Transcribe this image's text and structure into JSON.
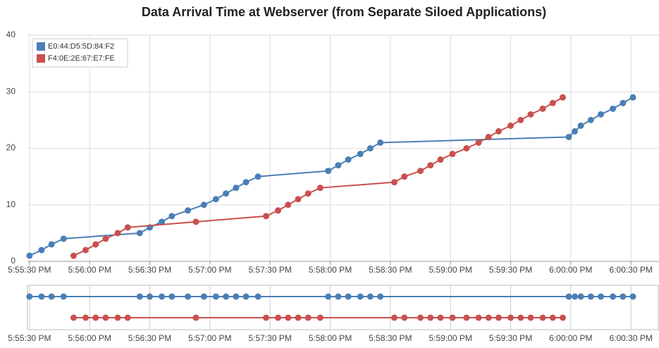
{
  "chart_data": {
    "type": "line",
    "title": "Data Arrival Time at Webserver (from Separate Siloed Applications)",
    "legend": "top-left",
    "grid": true,
    "xlim": [
      "5:55:29 PM",
      "6:00:44 PM"
    ],
    "xticks": [
      "5:55:30 PM",
      "5:56:00 PM",
      "5:56:30 PM",
      "5:57:00 PM",
      "5:57:30 PM",
      "5:58:00 PM",
      "5:58:30 PM",
      "5:59:00 PM",
      "5:59:30 PM",
      "6:00:00 PM",
      "6:00:30 PM"
    ],
    "ylim": [
      0,
      40
    ],
    "yticks": [
      0,
      10,
      20,
      30,
      40
    ],
    "series": [
      {
        "name": "E0:44:D5:5D:84:F2",
        "color": "#4a7fb5",
        "x": [
          "5:55:30 PM",
          "5:55:36 PM",
          "5:55:41 PM",
          "5:55:47 PM",
          "5:56:25 PM",
          "5:56:30 PM",
          "5:56:36 PM",
          "5:56:41 PM",
          "5:56:49 PM",
          "5:56:57 PM",
          "5:57:03 PM",
          "5:57:08 PM",
          "5:57:13 PM",
          "5:57:18 PM",
          "5:57:24 PM",
          "5:57:59 PM",
          "5:58:04 PM",
          "5:58:09 PM",
          "5:58:15 PM",
          "5:58:20 PM",
          "5:58:25 PM",
          "5:59:59 PM",
          "6:00:02 PM",
          "6:00:05 PM",
          "6:00:10 PM",
          "6:00:15 PM",
          "6:00:21 PM",
          "6:00:26 PM",
          "6:00:31 PM"
        ],
        "values": [
          1,
          2,
          3,
          4,
          5,
          6,
          7,
          8,
          9,
          10,
          11,
          12,
          13,
          14,
          15,
          16,
          17,
          18,
          19,
          20,
          21,
          22,
          23,
          24,
          25,
          26,
          27,
          28,
          29
        ]
      },
      {
        "name": "F4:0E:2E:67:E7:FE",
        "color": "#c9504f",
        "x": [
          "5:55:52 PM",
          "5:55:58 PM",
          "5:56:03 PM",
          "5:56:08 PM",
          "5:56:14 PM",
          "5:56:19 PM",
          "5:56:53 PM",
          "5:57:28 PM",
          "5:57:34 PM",
          "5:57:39 PM",
          "5:57:44 PM",
          "5:57:49 PM",
          "5:57:55 PM",
          "5:58:32 PM",
          "5:58:37 PM",
          "5:58:45 PM",
          "5:58:50 PM",
          "5:58:55 PM",
          "5:59:01 PM",
          "5:59:08 PM",
          "5:59:14 PM",
          "5:59:19 PM",
          "5:59:24 PM",
          "5:59:30 PM",
          "5:59:35 PM",
          "5:59:40 PM",
          "5:59:46 PM",
          "5:59:51 PM",
          "5:59:56 PM"
        ],
        "values": [
          1,
          2,
          3,
          4,
          5,
          6,
          7,
          8,
          9,
          10,
          11,
          12,
          13,
          14,
          15,
          16,
          17,
          18,
          19,
          20,
          21,
          22,
          23,
          24,
          25,
          26,
          27,
          28,
          29
        ]
      }
    ]
  }
}
